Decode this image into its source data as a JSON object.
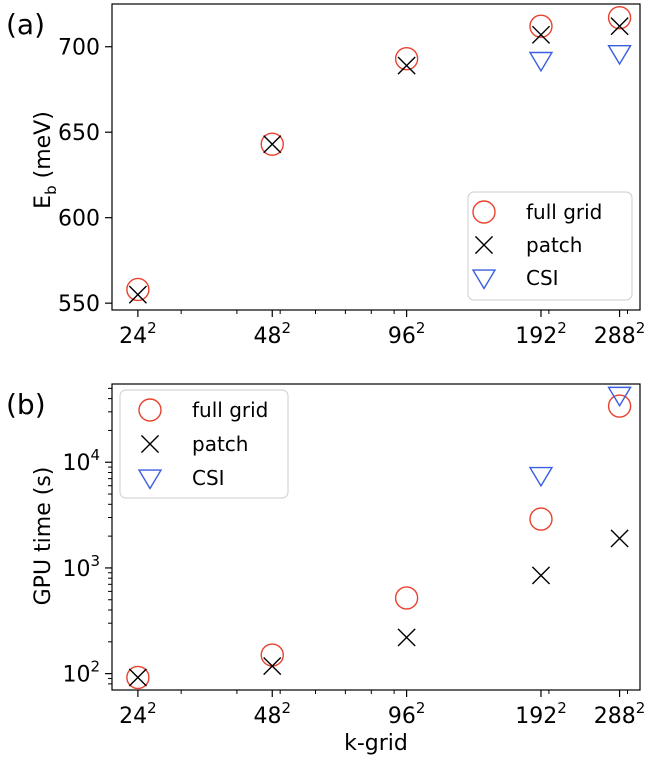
{
  "chart_data": [
    {
      "panel_label": "(a)",
      "type": "scatter",
      "ylabel_main": "E",
      "ylabel_sub": "b",
      "ylabel_rest": " (meV)",
      "xlabel": "",
      "xscale": "log",
      "yscale": "linear",
      "xlim": [
        21,
        320
      ],
      "ylim": [
        546,
        725
      ],
      "grid": false,
      "legend_position": "lower-right",
      "xticks": [
        {
          "value": 24,
          "base": "24",
          "exp": "2"
        },
        {
          "value": 48,
          "base": "48",
          "exp": "2"
        },
        {
          "value": 96,
          "base": "96",
          "exp": "2"
        },
        {
          "value": 192,
          "base": "192",
          "exp": "2"
        },
        {
          "value": 288,
          "base": "288",
          "exp": "2"
        }
      ],
      "yticks": [
        {
          "value": 550,
          "label": "550"
        },
        {
          "value": 600,
          "label": "600"
        },
        {
          "value": 650,
          "label": "650"
        },
        {
          "value": 700,
          "label": "700"
        }
      ],
      "series": [
        {
          "name": "full grid",
          "marker": "circle",
          "color": "#e8412e",
          "x": [
            24,
            48,
            96,
            192,
            288
          ],
          "y": [
            558,
            643,
            693,
            712,
            717
          ]
        },
        {
          "name": "patch",
          "marker": "x",
          "color": "#000000",
          "x": [
            24,
            48,
            96,
            192,
            288
          ],
          "y": [
            555,
            643,
            689,
            707,
            712
          ]
        },
        {
          "name": "CSI",
          "marker": "triangle-down",
          "color": "#3a5fe0",
          "x": [
            192,
            288
          ],
          "y": [
            692,
            696
          ]
        }
      ]
    },
    {
      "panel_label": "(b)",
      "type": "scatter",
      "ylabel": "GPU time (s)",
      "xlabel": "k-grid",
      "xscale": "log",
      "yscale": "log",
      "xlim": [
        21,
        320
      ],
      "ylim": [
        70,
        55000
      ],
      "grid": false,
      "legend_position": "upper-left",
      "xticks": [
        {
          "value": 24,
          "base": "24",
          "exp": "2"
        },
        {
          "value": 48,
          "base": "48",
          "exp": "2"
        },
        {
          "value": 96,
          "base": "96",
          "exp": "2"
        },
        {
          "value": 192,
          "base": "192",
          "exp": "2"
        },
        {
          "value": 288,
          "base": "288",
          "exp": "2"
        }
      ],
      "yticks": [
        {
          "value": 100,
          "base": "10",
          "exp": "2"
        },
        {
          "value": 1000,
          "base": "10",
          "exp": "3"
        },
        {
          "value": 10000,
          "base": "10",
          "exp": "4"
        }
      ],
      "series": [
        {
          "name": "full grid",
          "marker": "circle",
          "color": "#e8412e",
          "x": [
            24,
            48,
            96,
            192,
            288
          ],
          "y": [
            92,
            150,
            520,
            2900,
            34000
          ]
        },
        {
          "name": "patch",
          "marker": "x",
          "color": "#000000",
          "x": [
            24,
            48,
            96,
            192,
            288
          ],
          "y": [
            92,
            118,
            220,
            850,
            1900
          ]
        },
        {
          "name": "CSI",
          "marker": "triangle-down",
          "color": "#3a5fe0",
          "x": [
            192,
            288
          ],
          "y": [
            7500,
            43000
          ]
        }
      ]
    }
  ]
}
